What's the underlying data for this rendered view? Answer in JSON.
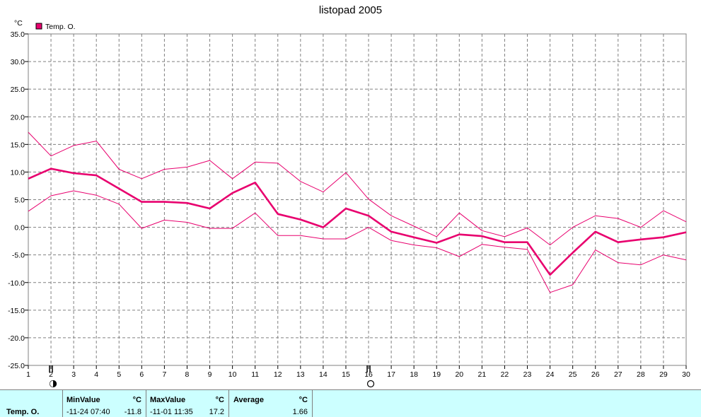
{
  "title": "listopad 2005",
  "unit_label": "°C",
  "legend_label": "Temp. O.",
  "colors": {
    "series": "#e8006e",
    "grid": "#808080",
    "frame": "#808080",
    "footer_bg": "#ccffff"
  },
  "moon_phases": [
    {
      "day": 2,
      "icon": "new-moon-icon"
    },
    {
      "day": 16,
      "icon": "full-moon-icon"
    }
  ],
  "chart_data": {
    "type": "line",
    "title": "listopad 2005",
    "x": [
      1,
      2,
      3,
      4,
      5,
      6,
      7,
      8,
      9,
      10,
      11,
      12,
      13,
      14,
      15,
      16,
      17,
      18,
      19,
      20,
      21,
      22,
      23,
      24,
      25,
      26,
      27,
      28,
      29,
      30
    ],
    "ylim": [
      -25,
      35
    ],
    "yticks": [
      "35.0",
      "30.0",
      "25.0",
      "20.0",
      "15.0",
      "10.0",
      "5.0",
      "0.0",
      "-5.0",
      "-10.0",
      "-15.0",
      "-20.0",
      "-25.0"
    ],
    "ylabel": "°C",
    "grid": true,
    "legend": "top-left",
    "series": [
      {
        "name": "Temp. O.",
        "role": "average",
        "values": [
          8.8,
          10.6,
          9.8,
          9.4,
          7.0,
          4.6,
          4.6,
          4.4,
          3.4,
          6.2,
          8.1,
          2.4,
          1.4,
          0.0,
          3.4,
          2.1,
          -0.8,
          -1.8,
          -2.8,
          -1.3,
          -1.6,
          -2.7,
          -2.7,
          -8.6,
          -4.6,
          -0.8,
          -2.7,
          -2.2,
          -1.8,
          -0.9
        ]
      },
      {
        "role": "max",
        "values": [
          17.2,
          12.9,
          14.8,
          15.6,
          10.5,
          8.8,
          10.5,
          10.9,
          12.1,
          8.8,
          11.8,
          11.6,
          8.3,
          6.4,
          9.9,
          5.1,
          2.1,
          0.2,
          -1.7,
          2.6,
          -0.6,
          -1.7,
          -0.1,
          -3.2,
          0.0,
          2.1,
          1.6,
          0.0,
          3.0,
          1.0
        ]
      },
      {
        "role": "min",
        "values": [
          2.9,
          5.7,
          6.6,
          5.8,
          4.2,
          -0.2,
          1.3,
          0.9,
          -0.2,
          -0.2,
          2.6,
          -1.5,
          -1.5,
          -2.1,
          -2.1,
          0.0,
          -2.4,
          -3.2,
          -3.7,
          -5.3,
          -3.1,
          -3.6,
          -4.0,
          -11.8,
          -10.4,
          -4.1,
          -6.4,
          -6.8,
          -5.0,
          -5.9
        ]
      }
    ]
  },
  "footer": {
    "row_label": "Temp. O.",
    "min": {
      "header": "MinValue",
      "unit": "°C",
      "time": "-11-24  07:40",
      "value": "-11.8"
    },
    "max": {
      "header": "MaxValue",
      "unit": "°C",
      "time": "-11-01  11:35",
      "value": "17.2"
    },
    "avg": {
      "header": "Average",
      "unit": "°C",
      "value": "1.66"
    }
  }
}
